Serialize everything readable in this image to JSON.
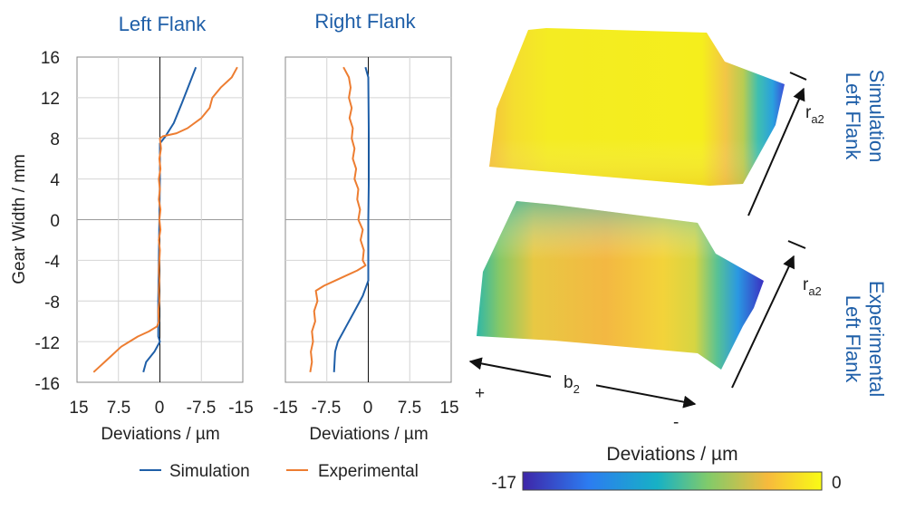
{
  "chart_data": [
    {
      "type": "line",
      "title": "Left Flank",
      "xlabel": "Deviations / µm",
      "ylabel": "Gear Width / mm",
      "xlim": [
        15,
        -15
      ],
      "ylim": [
        -16,
        16
      ],
      "xticks": [
        "15",
        "7.5",
        "0",
        "-7.5",
        "-15"
      ],
      "yticks": [
        "16",
        "12",
        "8",
        "4",
        "0",
        "-4",
        "-8",
        "-12",
        "-16"
      ],
      "grid": true,
      "series": [
        {
          "name": "Simulation",
          "color": "#1f5fa8",
          "points": [
            [
              -6.5,
              15
            ],
            [
              -4,
              11.5
            ],
            [
              -2.5,
              9.5
            ],
            [
              -1,
              8.2
            ],
            [
              0,
              7.5
            ],
            [
              0,
              4
            ],
            [
              0.1,
              0
            ],
            [
              0.2,
              -4
            ],
            [
              0.3,
              -8
            ],
            [
              0.3,
              -11.5
            ],
            [
              0,
              -12
            ],
            [
              1,
              -13
            ],
            [
              2.5,
              -14
            ],
            [
              3,
              -15
            ]
          ]
        },
        {
          "name": "Experimental",
          "color": "#ed7d31",
          "points": [
            [
              -14,
              15
            ],
            [
              -13,
              14
            ],
            [
              -11,
              13
            ],
            [
              -9.5,
              12
            ],
            [
              -9,
              11
            ],
            [
              -7.5,
              10
            ],
            [
              -5,
              9
            ],
            [
              -3,
              8.5
            ],
            [
              -0.5,
              8.2
            ],
            [
              0,
              8
            ],
            [
              -0.2,
              7
            ],
            [
              0.1,
              6
            ],
            [
              -0.1,
              5
            ],
            [
              0.2,
              4
            ],
            [
              0,
              3
            ],
            [
              0.2,
              2
            ],
            [
              -0.1,
              1
            ],
            [
              0.1,
              0
            ],
            [
              -0.1,
              -1
            ],
            [
              0.2,
              -2
            ],
            [
              0,
              -3
            ],
            [
              0.1,
              -4
            ],
            [
              0.2,
              -5
            ],
            [
              0.1,
              -6
            ],
            [
              0.2,
              -7
            ],
            [
              0.1,
              -8
            ],
            [
              0.3,
              -9
            ],
            [
              0.2,
              -10
            ],
            [
              0.5,
              -10.5
            ],
            [
              2,
              -11
            ],
            [
              4,
              -11.5
            ],
            [
              5.5,
              -12
            ],
            [
              7,
              -12.5
            ],
            [
              8,
              -13
            ],
            [
              9,
              -13.5
            ],
            [
              10,
              -14
            ],
            [
              11,
              -14.5
            ],
            [
              12,
              -15
            ]
          ]
        }
      ]
    },
    {
      "type": "line",
      "title": "Right Flank",
      "xlabel": "Deviations / µm",
      "ylabel": "",
      "xlim": [
        -15,
        15
      ],
      "ylim": [
        -16,
        16
      ],
      "xticks": [
        "-15",
        "-7.5",
        "0",
        "7.5",
        "15"
      ],
      "grid": true,
      "series": [
        {
          "name": "Simulation",
          "color": "#1f5fa8",
          "points": [
            [
              -0.5,
              15
            ],
            [
              0,
              14
            ],
            [
              0.1,
              8
            ],
            [
              0.1,
              4
            ],
            [
              0,
              0
            ],
            [
              0,
              -4
            ],
            [
              0,
              -6
            ],
            [
              -1,
              -7.5
            ],
            [
              -2.5,
              -9
            ],
            [
              -4,
              -10.5
            ],
            [
              -5.5,
              -12
            ],
            [
              -6,
              -13
            ],
            [
              -6.2,
              -15
            ]
          ]
        },
        {
          "name": "Experimental",
          "color": "#ed7d31",
          "points": [
            [
              -4.5,
              15
            ],
            [
              -3.5,
              14
            ],
            [
              -3.2,
              13
            ],
            [
              -3.5,
              12
            ],
            [
              -3,
              11
            ],
            [
              -3.4,
              10
            ],
            [
              -2.8,
              9
            ],
            [
              -3,
              8
            ],
            [
              -2.5,
              7
            ],
            [
              -2.8,
              6
            ],
            [
              -2.2,
              5
            ],
            [
              -2.5,
              4
            ],
            [
              -1.8,
              3
            ],
            [
              -2,
              2
            ],
            [
              -1.5,
              1
            ],
            [
              -1.8,
              0
            ],
            [
              -1,
              -1
            ],
            [
              -1.4,
              -2
            ],
            [
              -0.8,
              -3
            ],
            [
              -1,
              -4
            ],
            [
              -0.5,
              -4.5
            ],
            [
              -2,
              -5
            ],
            [
              -4,
              -5.5
            ],
            [
              -6,
              -6
            ],
            [
              -8,
              -6.5
            ],
            [
              -9.5,
              -7
            ],
            [
              -9.2,
              -8
            ],
            [
              -9.8,
              -9
            ],
            [
              -9.6,
              -10
            ],
            [
              -10.2,
              -11
            ],
            [
              -10,
              -12
            ],
            [
              -10.4,
              -13
            ],
            [
              -10.2,
              -14
            ],
            [
              -10.5,
              -15
            ]
          ]
        }
      ]
    }
  ],
  "surface": {
    "top_label_line1": "Simulation",
    "top_label_line2": "Left Flank",
    "bottom_label_line1": "Experimental",
    "bottom_label_line2": "Left Flank",
    "radius_label": "r",
    "radius_sub": "a2",
    "width_label": "b",
    "width_sub": "2",
    "plus_label": "+",
    "minus_label": "-"
  },
  "colorbar": {
    "title": "Deviations / µm",
    "min_label": "-17",
    "max_label": "0",
    "stops": [
      "#3e26a8",
      "#2c7cf1",
      "#17b1c5",
      "#81cb6a",
      "#f7ba3c",
      "#f9fb15"
    ]
  },
  "legend": [
    {
      "name": "Simulation",
      "color": "#1f5fa8"
    },
    {
      "name": "Experimental",
      "color": "#ed7d31"
    }
  ]
}
